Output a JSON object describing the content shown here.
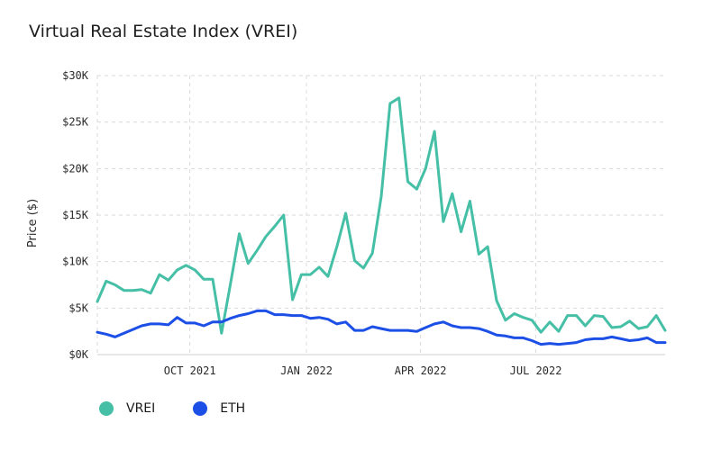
{
  "colors": {
    "vrei": "#45bfa6",
    "eth": "#1c4fe6",
    "grid": "#dadada",
    "axis": "#cfcfcf"
  },
  "chart_data": {
    "type": "line",
    "title": "Virtual Real Estate Index (VREI)",
    "ylabel": "Price ($)",
    "xlabel": "",
    "ylim": [
      0,
      30000
    ],
    "yticks": [
      0,
      5000,
      10000,
      15000,
      20000,
      25000,
      30000
    ],
    "ytick_labels": [
      "$0K",
      "$5K",
      "$10K",
      "$15K",
      "$20K",
      "$25K",
      "$30K"
    ],
    "xlim": [
      "2021-07-20",
      "2022-09-20"
    ],
    "xticks": [
      {
        "date": "2021-10-01",
        "label": "OCT 2021"
      },
      {
        "date": "2022-01-01",
        "label": "JAN 2022"
      },
      {
        "date": "2022-04-01",
        "label": "APR 2022"
      },
      {
        "date": "2022-07-01",
        "label": "JUL 2022"
      }
    ],
    "grid": true,
    "legend_position": "bottom-left",
    "series": [
      {
        "name": "VREI",
        "points": [
          [
            "2021-07-20",
            5700
          ],
          [
            "2021-07-27",
            7900
          ],
          [
            "2021-08-03",
            7500
          ],
          [
            "2021-08-10",
            6900
          ],
          [
            "2021-08-17",
            6900
          ],
          [
            "2021-08-24",
            7000
          ],
          [
            "2021-08-31",
            6600
          ],
          [
            "2021-09-07",
            8600
          ],
          [
            "2021-09-14",
            8000
          ],
          [
            "2021-09-21",
            9100
          ],
          [
            "2021-09-28",
            9600
          ],
          [
            "2021-10-05",
            9100
          ],
          [
            "2021-10-12",
            8100
          ],
          [
            "2021-10-19",
            8100
          ],
          [
            "2021-10-26",
            2300
          ],
          [
            "2021-11-02",
            7600
          ],
          [
            "2021-11-09",
            13000
          ],
          [
            "2021-11-16",
            9800
          ],
          [
            "2021-11-23",
            11200
          ],
          [
            "2021-11-30",
            12700
          ],
          [
            "2021-12-07",
            13800
          ],
          [
            "2021-12-14",
            15000
          ],
          [
            "2021-12-21",
            5900
          ],
          [
            "2021-12-28",
            8600
          ],
          [
            "2022-01-04",
            8600
          ],
          [
            "2022-01-11",
            9400
          ],
          [
            "2022-01-18",
            8400
          ],
          [
            "2022-01-25",
            11600
          ],
          [
            "2022-02-01",
            15200
          ],
          [
            "2022-02-08",
            10100
          ],
          [
            "2022-02-15",
            9300
          ],
          [
            "2022-02-22",
            10900
          ],
          [
            "2022-03-01",
            17000
          ],
          [
            "2022-03-08",
            27000
          ],
          [
            "2022-03-15",
            27600
          ],
          [
            "2022-03-22",
            18600
          ],
          [
            "2022-03-29",
            17800
          ],
          [
            "2022-04-05",
            20000
          ],
          [
            "2022-04-12",
            24000
          ],
          [
            "2022-04-19",
            14300
          ],
          [
            "2022-04-26",
            17300
          ],
          [
            "2022-05-03",
            13200
          ],
          [
            "2022-05-10",
            16500
          ],
          [
            "2022-05-17",
            10800
          ],
          [
            "2022-05-24",
            11600
          ],
          [
            "2022-05-31",
            5800
          ],
          [
            "2022-06-07",
            3700
          ],
          [
            "2022-06-14",
            4400
          ],
          [
            "2022-06-21",
            4000
          ],
          [
            "2022-06-28",
            3700
          ],
          [
            "2022-07-05",
            2400
          ],
          [
            "2022-07-12",
            3500
          ],
          [
            "2022-07-19",
            2500
          ],
          [
            "2022-07-26",
            4200
          ],
          [
            "2022-08-02",
            4200
          ],
          [
            "2022-08-09",
            3100
          ],
          [
            "2022-08-16",
            4200
          ],
          [
            "2022-08-23",
            4100
          ],
          [
            "2022-08-30",
            2900
          ],
          [
            "2022-09-06",
            3000
          ],
          [
            "2022-09-13",
            3600
          ],
          [
            "2022-09-20",
            2800
          ],
          [
            "2022-09-27",
            3000
          ],
          [
            "2022-10-04",
            4200
          ],
          [
            "2022-10-11",
            2600
          ]
        ]
      },
      {
        "name": "ETH",
        "points": [
          [
            "2021-07-20",
            2400
          ],
          [
            "2021-07-27",
            2200
          ],
          [
            "2021-08-03",
            1900
          ],
          [
            "2021-08-10",
            2300
          ],
          [
            "2021-08-17",
            2700
          ],
          [
            "2021-08-24",
            3100
          ],
          [
            "2021-08-31",
            3300
          ],
          [
            "2021-09-07",
            3300
          ],
          [
            "2021-09-14",
            3200
          ],
          [
            "2021-09-21",
            4000
          ],
          [
            "2021-09-28",
            3400
          ],
          [
            "2021-10-05",
            3400
          ],
          [
            "2021-10-12",
            3100
          ],
          [
            "2021-10-19",
            3500
          ],
          [
            "2021-10-26",
            3500
          ],
          [
            "2021-11-02",
            3900
          ],
          [
            "2021-11-09",
            4200
          ],
          [
            "2021-11-16",
            4400
          ],
          [
            "2021-11-23",
            4700
          ],
          [
            "2021-11-30",
            4700
          ],
          [
            "2021-12-07",
            4300
          ],
          [
            "2021-12-14",
            4300
          ],
          [
            "2021-12-21",
            4200
          ],
          [
            "2021-12-28",
            4200
          ],
          [
            "2022-01-04",
            3900
          ],
          [
            "2022-01-11",
            4000
          ],
          [
            "2022-01-18",
            3800
          ],
          [
            "2022-01-25",
            3300
          ],
          [
            "2022-02-01",
            3500
          ],
          [
            "2022-02-08",
            2600
          ],
          [
            "2022-02-15",
            2600
          ],
          [
            "2022-02-22",
            3000
          ],
          [
            "2022-03-01",
            2800
          ],
          [
            "2022-03-08",
            2600
          ],
          [
            "2022-03-15",
            2600
          ],
          [
            "2022-03-22",
            2600
          ],
          [
            "2022-03-29",
            2500
          ],
          [
            "2022-04-05",
            2900
          ],
          [
            "2022-04-12",
            3300
          ],
          [
            "2022-04-19",
            3500
          ],
          [
            "2022-04-26",
            3100
          ],
          [
            "2022-05-03",
            2900
          ],
          [
            "2022-05-10",
            2900
          ],
          [
            "2022-05-17",
            2800
          ],
          [
            "2022-05-24",
            2500
          ],
          [
            "2022-05-31",
            2100
          ],
          [
            "2022-06-07",
            2000
          ],
          [
            "2022-06-14",
            1800
          ],
          [
            "2022-06-21",
            1800
          ],
          [
            "2022-06-28",
            1500
          ],
          [
            "2022-07-05",
            1100
          ],
          [
            "2022-07-12",
            1200
          ],
          [
            "2022-07-19",
            1100
          ],
          [
            "2022-07-26",
            1200
          ],
          [
            "2022-08-02",
            1300
          ],
          [
            "2022-08-09",
            1600
          ],
          [
            "2022-08-16",
            1700
          ],
          [
            "2022-08-23",
            1700
          ],
          [
            "2022-08-30",
            1900
          ],
          [
            "2022-09-06",
            1700
          ],
          [
            "2022-09-13",
            1500
          ],
          [
            "2022-09-20",
            1600
          ],
          [
            "2022-09-27",
            1800
          ],
          [
            "2022-10-04",
            1300
          ],
          [
            "2022-10-11",
            1300
          ]
        ]
      }
    ]
  }
}
